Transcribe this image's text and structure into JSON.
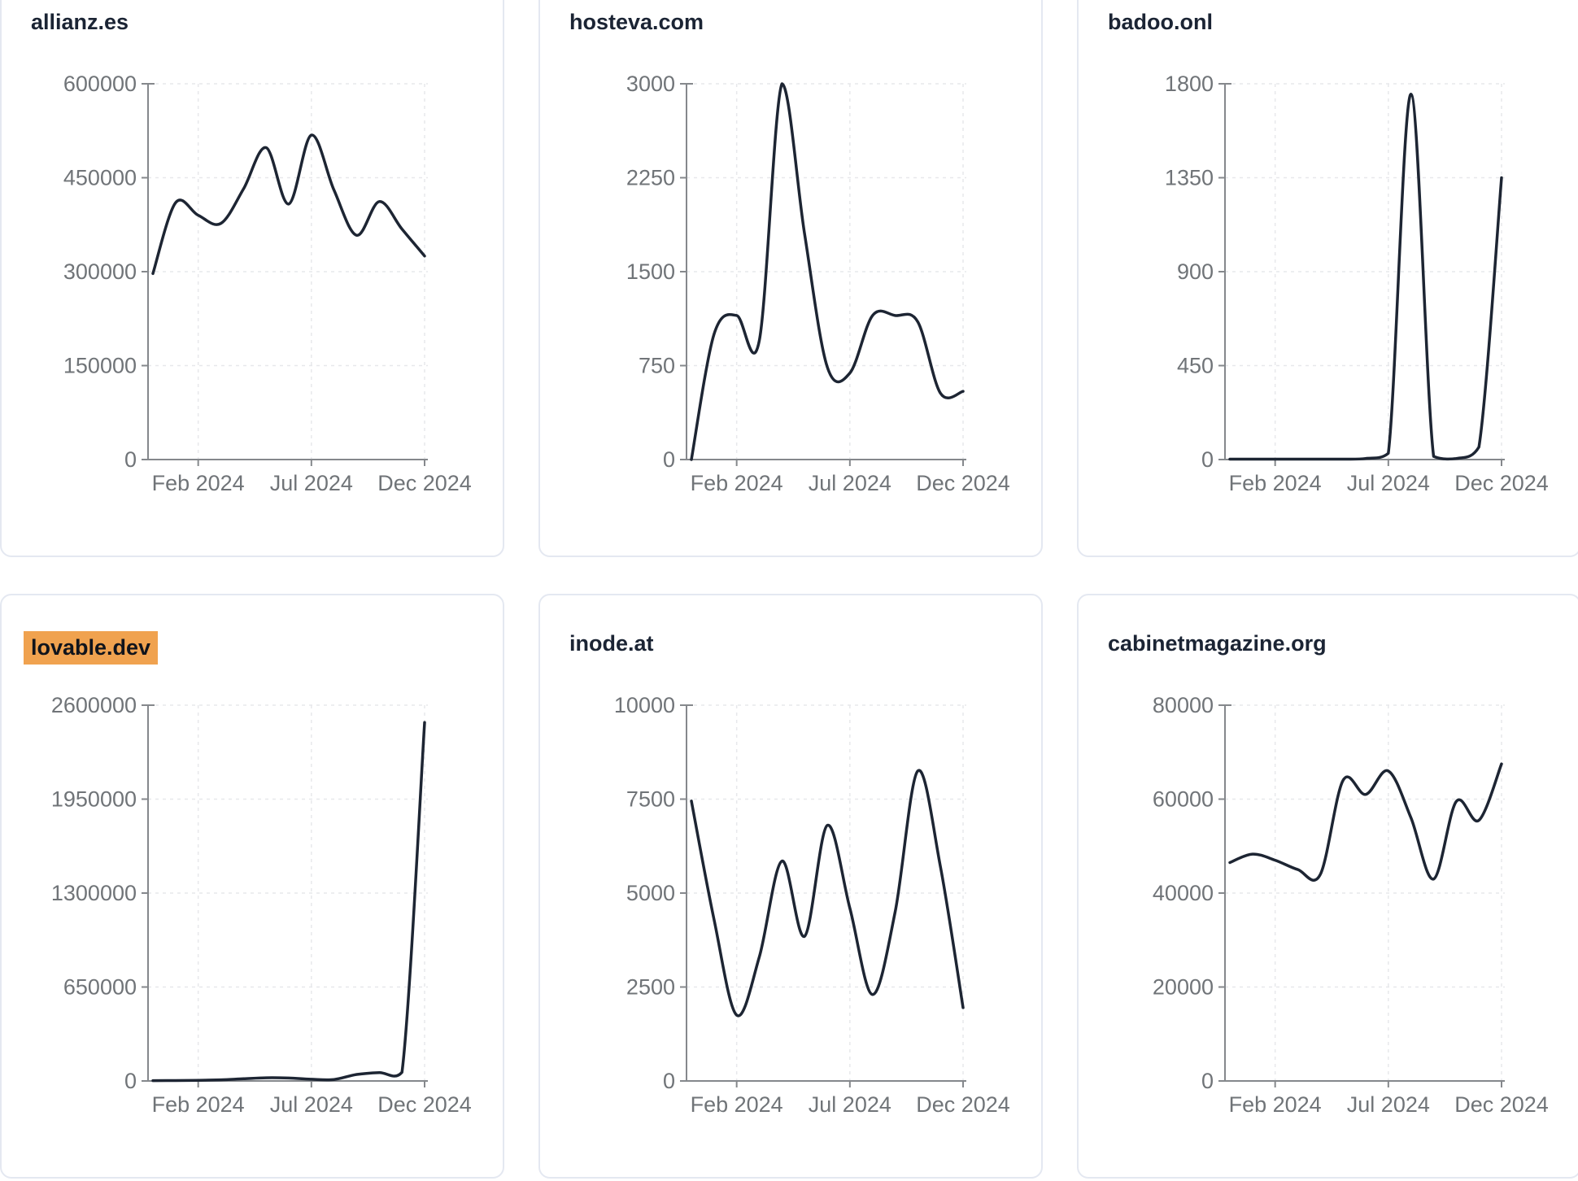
{
  "colors": {
    "line": "#1d2533",
    "title_text": "#1b2434",
    "tick_text": "#707478",
    "axis": "#85888c",
    "gridline": "#e7e8eb",
    "card_border": "#e4e8f1",
    "highlight_background": "#f0a24f",
    "page_background": "#ffffff"
  },
  "x_axis": {
    "tick_labels": [
      "Feb 2024",
      "Jul 2024",
      "Dec 2024"
    ],
    "tick_month_indices": [
      2,
      7,
      12
    ]
  },
  "chart_data": [
    {
      "type": "line",
      "title": "allianz.es",
      "highlighted": false,
      "x_range": "Dec 2023 to Dec 2024, monthly",
      "ylim": [
        0,
        600000
      ],
      "yticks": [
        0,
        150000,
        300000,
        450000,
        600000
      ],
      "xticks": [
        "Feb 2024",
        "Jul 2024",
        "Dec 2024"
      ],
      "values": [
        297000,
        410000,
        390000,
        377000,
        432000,
        498000,
        408000,
        518000,
        430000,
        358000,
        412000,
        368000,
        325000
      ]
    },
    {
      "type": "line",
      "title": "hosteva.com",
      "highlighted": false,
      "x_range": "Dec 2023 to Dec 2024, monthly",
      "ylim": [
        0,
        3000
      ],
      "yticks": [
        0,
        750,
        1500,
        2250,
        3000
      ],
      "xticks": [
        "Feb 2024",
        "Jul 2024",
        "Dec 2024"
      ],
      "values": [
        0,
        1000,
        1150,
        950,
        3000,
        1800,
        740,
        690,
        1150,
        1150,
        1100,
        530,
        545
      ]
    },
    {
      "type": "line",
      "title": "badoo.onl",
      "highlighted": false,
      "x_range": "Dec 2023 to Dec 2024, monthly",
      "ylim": [
        0,
        1800
      ],
      "yticks": [
        0,
        450,
        900,
        1350,
        1800
      ],
      "xticks": [
        "Feb 2024",
        "Jul 2024",
        "Dec 2024"
      ],
      "values": [
        2,
        2,
        2,
        2,
        2,
        2,
        5,
        30,
        1750,
        15,
        5,
        60,
        1350
      ]
    },
    {
      "type": "line",
      "title": "lovable.dev",
      "highlighted": true,
      "x_range": "Dec 2023 to Dec 2024, monthly",
      "ylim": [
        0,
        2600000
      ],
      "yticks": [
        0,
        650000,
        1300000,
        1950000,
        2600000
      ],
      "xticks": [
        "Feb 2024",
        "Jul 2024",
        "Dec 2024"
      ],
      "values": [
        2000,
        3000,
        4000,
        8000,
        15000,
        22000,
        20000,
        12000,
        10000,
        45000,
        58000,
        60000,
        2480000
      ]
    },
    {
      "type": "line",
      "title": "inode.at",
      "highlighted": false,
      "x_range": "Dec 2023 to Dec 2024, monthly",
      "ylim": [
        0,
        10000
      ],
      "yticks": [
        0,
        2500,
        5000,
        7500,
        10000
      ],
      "xticks": [
        "Feb 2024",
        "Jul 2024",
        "Dec 2024"
      ],
      "values": [
        7450,
        4300,
        1750,
        3300,
        5850,
        3850,
        6800,
        4600,
        2300,
        4500,
        8250,
        5700,
        1950
      ]
    },
    {
      "type": "line",
      "title": "cabinetmagazine.org",
      "highlighted": false,
      "x_range": "Dec 2023 to Dec 2024, monthly",
      "ylim": [
        0,
        80000
      ],
      "yticks": [
        0,
        20000,
        40000,
        60000,
        80000
      ],
      "xticks": [
        "Feb 2024",
        "Jul 2024",
        "Dec 2024"
      ],
      "values": [
        46500,
        48300,
        47000,
        45000,
        44000,
        64000,
        61000,
        66000,
        56000,
        43000,
        59500,
        55500,
        67500
      ]
    }
  ]
}
